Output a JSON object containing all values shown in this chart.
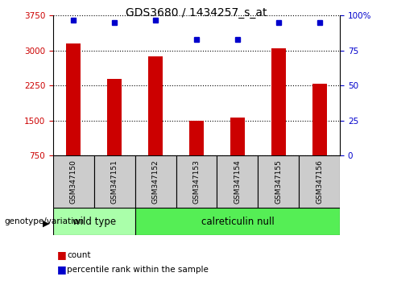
{
  "title": "GDS3680 / 1434257_s_at",
  "samples": [
    "GSM347150",
    "GSM347151",
    "GSM347152",
    "GSM347153",
    "GSM347154",
    "GSM347155",
    "GSM347156"
  ],
  "bar_values": [
    3150,
    2400,
    2870,
    1490,
    1570,
    3050,
    2280
  ],
  "percentile_values": [
    97,
    95,
    97,
    83,
    83,
    95,
    95
  ],
  "ylim_left": [
    750,
    3750
  ],
  "ylim_right": [
    0,
    100
  ],
  "yticks_left": [
    750,
    1500,
    2250,
    3000,
    3750
  ],
  "yticks_right": [
    0,
    25,
    50,
    75,
    100
  ],
  "bar_color": "#cc0000",
  "dot_color": "#0000cc",
  "bar_width": 0.35,
  "groups": [
    {
      "label": "wild type",
      "indices": [
        0,
        1
      ],
      "color": "#aaffaa"
    },
    {
      "label": "calreticulin null",
      "indices": [
        2,
        3,
        4,
        5,
        6
      ],
      "color": "#55ee55"
    }
  ],
  "group_label_prefix": "genotype/variation",
  "legend_count_label": "count",
  "legend_pct_label": "percentile rank within the sample",
  "tick_label_color_left": "#cc0000",
  "tick_label_color_right": "#0000cc",
  "sample_box_color": "#cccccc"
}
